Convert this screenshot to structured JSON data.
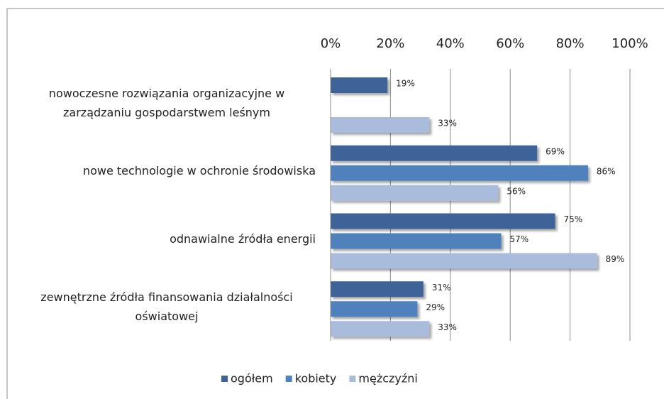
{
  "chart_data": {
    "type": "bar",
    "orientation": "horizontal",
    "categories": [
      "nowoczesne rozwiązania organizacyjne w zarządzaniu gospodarstwem leśnym",
      "nowe technologie w ochronie środowiska",
      "odnawialne źródła energii",
      "zewnętrzne źródła finansowania działalności oświatowej"
    ],
    "series": [
      {
        "name": "ogółem",
        "color": "#3d6399",
        "values": [
          19,
          69,
          75,
          31
        ],
        "value_labels": [
          "19%",
          "69%",
          "75%",
          "31%"
        ]
      },
      {
        "name": "kobiety",
        "color": "#4f81bd",
        "values": [
          null,
          86,
          57,
          29
        ],
        "value_labels": [
          null,
          "86%",
          "57%",
          "29%"
        ]
      },
      {
        "name": "mężczyźni",
        "color": "#a9bcdb",
        "values": [
          33,
          56,
          89,
          33
        ],
        "value_labels": [
          "33%",
          "56%",
          "89%",
          "33%"
        ]
      }
    ],
    "xlim": [
      0,
      100
    ],
    "xticks": [
      {
        "value": 0,
        "label": "0%"
      },
      {
        "value": 20,
        "label": "20%"
      },
      {
        "value": 40,
        "label": "40%"
      },
      {
        "value": 60,
        "label": "60%"
      },
      {
        "value": 80,
        "label": "80%"
      },
      {
        "value": 100,
        "label": "100%"
      }
    ],
    "grid": true,
    "legend": "bottom"
  }
}
